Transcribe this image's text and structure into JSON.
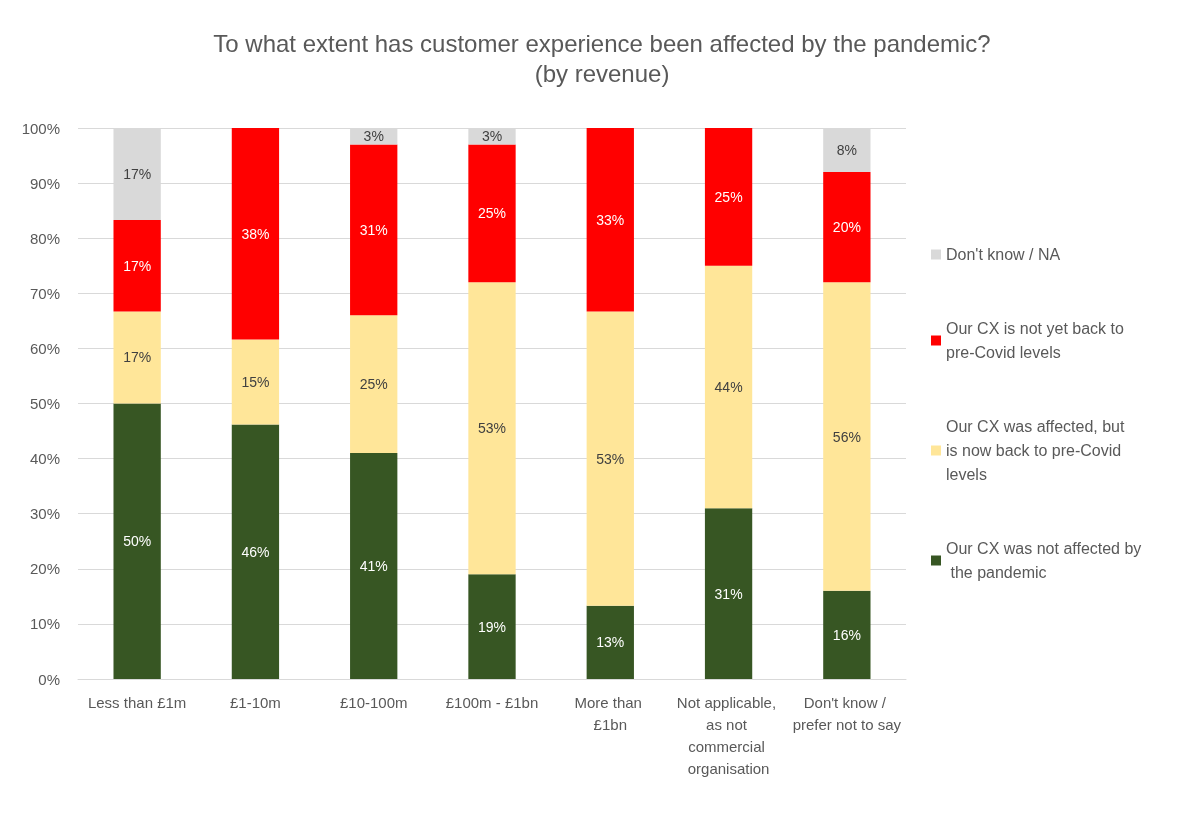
{
  "chart_data": {
    "type": "bar",
    "stacked": true,
    "title": "To what extent has customer experience been affected by the pandemic?",
    "subtitle": "(by revenue)",
    "categories": [
      "Less than £1m",
      "£1-10m",
      "£10-100m",
      "£100m - £1bn",
      "More than £1bn",
      "Not applicable, as not commercial organisation",
      "Don't know / prefer not to say"
    ],
    "series": [
      {
        "name": "Our CX was not affected by the pandemic",
        "color": "#375623",
        "values": [
          50,
          46.2,
          41,
          19,
          13.3,
          31,
          16
        ],
        "value_labels": [
          "50%",
          "46%",
          "41%",
          "19%",
          "13%",
          "31%",
          "16%"
        ]
      },
      {
        "name": "Our CX was affected, but is now back to pre-Covid levels",
        "color": "#ffe699",
        "values": [
          16.7,
          15.4,
          25,
          53,
          53.4,
          44,
          56
        ],
        "value_labels": [
          "17%",
          "15%",
          "25%",
          "53%",
          "53%",
          "44%",
          "56%"
        ]
      },
      {
        "name": "Our CX is not yet back to pre-Covid levels",
        "color": "#ff0000",
        "values": [
          16.6,
          38.4,
          31,
          25,
          33.3,
          25,
          20
        ],
        "value_labels": [
          "17%",
          "38%",
          "31%",
          "25%",
          "33%",
          "25%",
          "20%"
        ]
      },
      {
        "name": "Don't know / NA",
        "color": "#d9d9d9",
        "values": [
          16.7,
          null,
          3,
          3,
          null,
          null,
          8
        ],
        "value_labels": [
          "17%",
          null,
          "3%",
          "3%",
          null,
          null,
          "8%"
        ]
      }
    ],
    "ylim": [
      0,
      100
    ],
    "yticks": [
      {
        "value": 0,
        "label": "0%"
      },
      {
        "value": 10,
        "label": "10%"
      },
      {
        "value": 20,
        "label": "20%"
      },
      {
        "value": 30,
        "label": "30%"
      },
      {
        "value": 40,
        "label": "40%"
      },
      {
        "value": 50,
        "label": "50%"
      },
      {
        "value": 60,
        "label": "60%"
      },
      {
        "value": 70,
        "label": "70%"
      },
      {
        "value": 80,
        "label": "80%"
      },
      {
        "value": 90,
        "label": "90%"
      },
      {
        "value": 100,
        "label": "100%"
      }
    ],
    "grid": "y",
    "legend": "right"
  }
}
